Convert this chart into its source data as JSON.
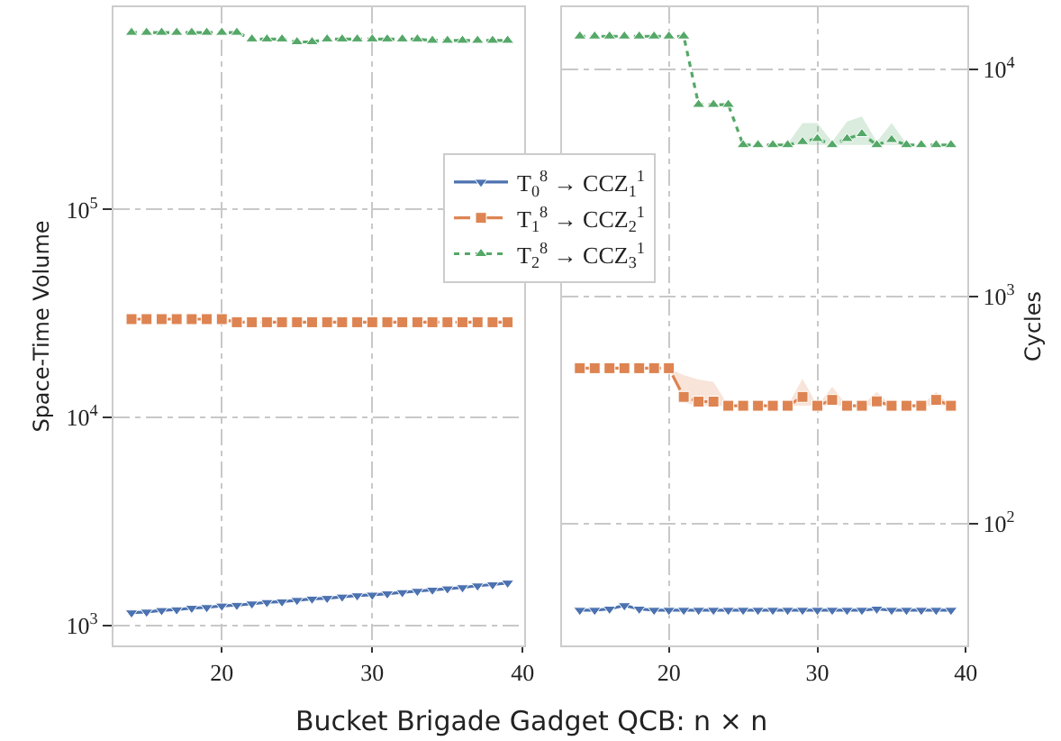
{
  "chart_data": [
    {
      "type": "line",
      "xlabel": "Bucket Brigade Gadget QCB: n × n",
      "ylabel": "Space-Time Volume",
      "log": "y",
      "grid": true,
      "legend": "top right",
      "x": [
        14,
        15,
        16,
        17,
        18,
        19,
        20,
        21,
        22,
        23,
        24,
        25,
        26,
        27,
        28,
        29,
        30,
        31,
        32,
        33,
        34,
        35,
        36,
        37,
        38,
        39
      ],
      "xlim": [
        12.8,
        40.1
      ],
      "xticks": [
        20,
        30,
        40
      ],
      "ylim": [
        800,
        940000
      ],
      "yticks": [
        {
          "value": 1000,
          "label": "10$^{3}$"
        },
        {
          "value": 10000,
          "label": "10$^{4}$"
        },
        {
          "value": 100000,
          "label": "10$^{5}$"
        }
      ],
      "series": [
        {
          "name": "T$_{0}$$^{8}$ → CCZ$_{1}$$^{1}$",
          "color": "#4c72b0",
          "marker": "triangle-down",
          "line_style": "solid",
          "values": [
            1150,
            1160,
            1180,
            1190,
            1210,
            1220,
            1240,
            1250,
            1270,
            1290,
            1300,
            1320,
            1340,
            1350,
            1370,
            1390,
            1400,
            1420,
            1440,
            1460,
            1480,
            1500,
            1520,
            1550,
            1570,
            1600
          ]
        },
        {
          "name": "T$_{1}$$^{8}$ → CCZ$_{2}$$^{1}$",
          "color": "#dd8452",
          "marker": "square",
          "line_style": "dashed",
          "values": [
            29700,
            29700,
            29700,
            29700,
            29700,
            29700,
            29700,
            28700,
            28700,
            28700,
            28700,
            28700,
            28700,
            28700,
            28700,
            28700,
            28700,
            28700,
            28700,
            28700,
            28700,
            28700,
            28700,
            28700,
            28700,
            28700
          ]
        },
        {
          "name": "T$_{2}$$^{8}$ → CCZ$_{3}$$^{1}$",
          "color": "#55a868",
          "marker": "triangle",
          "line_style": "dotted",
          "values": [
            710000,
            710000,
            710000,
            710000,
            710000,
            710000,
            710000,
            710000,
            660000,
            660000,
            660000,
            640000,
            640000,
            660000,
            660000,
            660000,
            660000,
            660000,
            660000,
            660000,
            650000,
            650000,
            650000,
            650000,
            650000,
            650000
          ]
        }
      ]
    },
    {
      "type": "line",
      "ylabel": "Cycles",
      "log": "y",
      "grid": true,
      "x": [
        14,
        15,
        16,
        17,
        18,
        19,
        20,
        21,
        22,
        23,
        24,
        25,
        26,
        27,
        28,
        29,
        30,
        31,
        32,
        33,
        34,
        35,
        36,
        37,
        38,
        39
      ],
      "xlim": [
        12.8,
        40.1
      ],
      "xticks": [
        20,
        30,
        40
      ],
      "ylim": [
        29,
        18800
      ],
      "yticks": [
        {
          "value": 100,
          "label": "10$^{2}$"
        },
        {
          "value": 1000,
          "label": "10$^{3}$"
        },
        {
          "value": 10000,
          "label": "10$^{4}$"
        }
      ],
      "series": [
        {
          "color": "#4c72b0",
          "marker": "triangle-down",
          "line_style": "solid",
          "values": [
            41.5,
            41.5,
            42,
            43.5,
            42,
            41.5,
            41.5,
            41.5,
            41.5,
            41.5,
            41.5,
            41.5,
            41.5,
            41.5,
            41.5,
            41.5,
            41.5,
            41.5,
            41.5,
            41.5,
            42,
            41.5,
            41.5,
            41.5,
            41.5,
            41.5
          ]
        },
        {
          "color": "#dd8452",
          "marker": "square",
          "line_style": "dashed",
          "values": [
            483,
            483,
            483,
            483,
            483,
            483,
            483,
            361,
            344,
            344,
            330,
            330,
            330,
            330,
            330,
            361,
            330,
            350,
            330,
            330,
            345,
            330,
            330,
            330,
            350,
            330
          ],
          "lower": [
            483,
            483,
            483,
            483,
            483,
            483,
            483,
            340,
            330,
            330,
            330,
            330,
            330,
            330,
            330,
            330,
            330,
            330,
            330,
            330,
            330,
            330,
            330,
            330,
            330,
            330
          ],
          "upper": [
            483,
            483,
            483,
            483,
            483,
            483,
            483,
            450,
            430,
            420,
            330,
            330,
            330,
            330,
            330,
            433,
            330,
            400,
            330,
            330,
            380,
            330,
            330,
            330,
            380,
            330
          ]
        },
        {
          "color": "#55a868",
          "marker": "triangle",
          "line_style": "dotted",
          "values": [
            14000,
            14000,
            14000,
            14000,
            14000,
            14000,
            14000,
            14000,
            7000,
            7000,
            7000,
            4650,
            4650,
            4650,
            4650,
            4800,
            4950,
            4650,
            4950,
            5200,
            4650,
            4900,
            4650,
            4650,
            4650,
            4650
          ],
          "lower": [
            14000,
            14000,
            14000,
            14000,
            14000,
            14000,
            14000,
            14000,
            7000,
            7000,
            7000,
            4650,
            4650,
            4650,
            4650,
            4650,
            4650,
            4650,
            4650,
            4650,
            4650,
            4650,
            4650,
            4650,
            4650,
            4650
          ],
          "upper": [
            14000,
            14000,
            14000,
            14000,
            14000,
            14000,
            14000,
            14000,
            7000,
            7000,
            7000,
            4650,
            4650,
            4650,
            4700,
            5800,
            5800,
            4800,
            5900,
            6200,
            4800,
            5800,
            4700,
            4650,
            4650,
            4650
          ]
        }
      ]
    }
  ]
}
